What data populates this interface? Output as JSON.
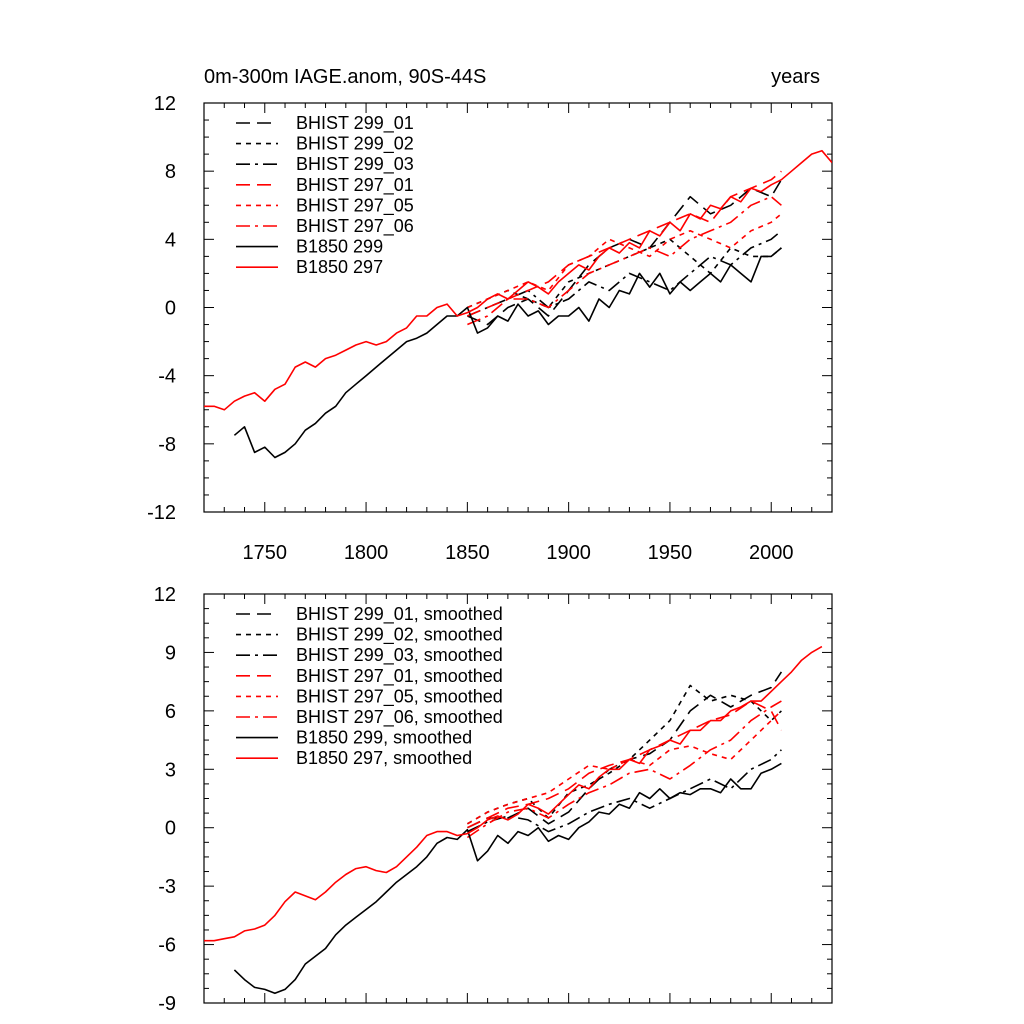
{
  "chart_data": [
    {
      "type": "line",
      "title": "0m-300m IAGE.anom, 90S-44S",
      "units": "years",
      "xlim": [
        1720,
        2030
      ],
      "ylim": [
        -12,
        12
      ],
      "xticks": [
        1750,
        1800,
        1850,
        1900,
        1950,
        2000
      ],
      "yticks": [
        -12,
        -8,
        -4,
        0,
        4,
        8,
        12
      ],
      "legend_position": "top-left",
      "series": [
        {
          "name": "BHIST 299_01",
          "color": "#000000",
          "dash": "longdash",
          "x": [
            1850,
            1860,
            1870,
            1880,
            1890,
            1900,
            1910,
            1920,
            1930,
            1940,
            1950,
            1960,
            1970,
            1980,
            1990,
            2000,
            2005
          ],
          "y": [
            -0.5,
            -1.0,
            0.0,
            0.5,
            -0.5,
            1.0,
            2.5,
            3.5,
            4.0,
            3.5,
            5.0,
            6.5,
            5.5,
            6.0,
            7.0,
            6.5,
            7.5
          ]
        },
        {
          "name": "BHIST 299_02",
          "color": "#000000",
          "dash": "shortdash",
          "x": [
            1850,
            1860,
            1870,
            1880,
            1890,
            1900,
            1910,
            1920,
            1930,
            1940,
            1950,
            1960,
            1970,
            1980,
            1990,
            2000,
            2005
          ],
          "y": [
            0.0,
            0.5,
            1.0,
            0.5,
            0.0,
            1.5,
            2.0,
            2.5,
            3.0,
            3.5,
            4.0,
            3.0,
            2.0,
            3.5,
            3.0,
            3.0,
            3.5
          ]
        },
        {
          "name": "BHIST 299_03",
          "color": "#000000",
          "dash": "dashdot",
          "x": [
            1850,
            1860,
            1870,
            1880,
            1890,
            1900,
            1910,
            1920,
            1930,
            1940,
            1950,
            1960,
            1970,
            1980,
            1990,
            2000,
            2005
          ],
          "y": [
            -0.5,
            0.0,
            0.5,
            1.0,
            0.0,
            0.5,
            1.5,
            1.0,
            2.0,
            1.5,
            1.0,
            2.0,
            3.0,
            2.5,
            3.5,
            4.0,
            4.5
          ]
        },
        {
          "name": "BHIST 297_01",
          "color": "#ff0000",
          "dash": "longdash",
          "x": [
            1850,
            1860,
            1870,
            1880,
            1890,
            1900,
            1910,
            1920,
            1930,
            1940,
            1950,
            1960,
            1970,
            1980,
            1990,
            2000,
            2005
          ],
          "y": [
            -0.5,
            0.0,
            0.5,
            1.0,
            1.5,
            2.5,
            3.0,
            3.5,
            4.0,
            4.5,
            5.0,
            5.5,
            5.0,
            6.5,
            7.0,
            7.5,
            8.0
          ]
        },
        {
          "name": "BHIST 297_05",
          "color": "#ff0000",
          "dash": "shortdash",
          "x": [
            1850,
            1860,
            1870,
            1880,
            1890,
            1900,
            1910,
            1920,
            1930,
            1940,
            1950,
            1960,
            1970,
            1980,
            1990,
            2000,
            2005
          ],
          "y": [
            0.0,
            0.5,
            1.0,
            1.5,
            1.0,
            2.5,
            3.0,
            4.0,
            3.5,
            3.0,
            4.0,
            4.5,
            4.0,
            3.5,
            4.5,
            5.0,
            5.5
          ]
        },
        {
          "name": "BHIST 297_06",
          "color": "#ff0000",
          "dash": "dashdot",
          "x": [
            1850,
            1860,
            1870,
            1880,
            1890,
            1900,
            1910,
            1920,
            1930,
            1940,
            1950,
            1960,
            1970,
            1980,
            1990,
            2000,
            2005
          ],
          "y": [
            -1.0,
            -0.5,
            0.5,
            0.5,
            0.0,
            1.0,
            2.0,
            2.5,
            3.0,
            3.5,
            3.0,
            4.0,
            4.5,
            5.0,
            6.0,
            6.5,
            6.0
          ]
        },
        {
          "name": "B1850 299",
          "color": "#000000",
          "dash": "solid",
          "x": [
            1735,
            1740,
            1745,
            1750,
            1755,
            1760,
            1765,
            1770,
            1775,
            1780,
            1785,
            1790,
            1795,
            1800,
            1805,
            1810,
            1815,
            1820,
            1825,
            1830,
            1835,
            1840,
            1845,
            1850,
            1855,
            1860,
            1865,
            1870,
            1875,
            1880,
            1885,
            1890,
            1895,
            1900,
            1905,
            1910,
            1915,
            1920,
            1925,
            1930,
            1935,
            1940,
            1945,
            1950,
            1955,
            1960,
            1965,
            1970,
            1975,
            1980,
            1985,
            1990,
            1995,
            2000,
            2005
          ],
          "y": [
            -7.5,
            -7.0,
            -8.5,
            -8.2,
            -8.8,
            -8.5,
            -8.0,
            -7.2,
            -6.8,
            -6.2,
            -5.8,
            -5.0,
            -4.5,
            -4.0,
            -3.5,
            -3.0,
            -2.5,
            -2.0,
            -1.8,
            -1.5,
            -1.0,
            -0.5,
            -0.5,
            0.0,
            -1.5,
            -1.2,
            -0.5,
            -0.8,
            0.2,
            -0.5,
            -0.2,
            -1.0,
            -0.5,
            -0.5,
            0.0,
            -0.8,
            0.5,
            0.0,
            1.0,
            0.8,
            2.0,
            1.2,
            2.0,
            0.8,
            1.5,
            1.0,
            1.5,
            2.0,
            1.5,
            2.5,
            2.0,
            1.5,
            3.0,
            3.0,
            3.5
          ]
        },
        {
          "name": "B1850 297",
          "color": "#ff0000",
          "dash": "solid",
          "x": [
            1720,
            1725,
            1730,
            1735,
            1740,
            1745,
            1750,
            1755,
            1760,
            1765,
            1770,
            1775,
            1780,
            1785,
            1790,
            1795,
            1800,
            1805,
            1810,
            1815,
            1820,
            1825,
            1830,
            1835,
            1840,
            1845,
            1850,
            1855,
            1860,
            1865,
            1870,
            1875,
            1880,
            1885,
            1890,
            1895,
            1900,
            1905,
            1910,
            1915,
            1920,
            1925,
            1930,
            1935,
            1940,
            1945,
            1950,
            1955,
            1960,
            1965,
            1970,
            1975,
            1980,
            1985,
            1990,
            1995,
            2000,
            2005,
            2010,
            2015,
            2020,
            2025,
            2030
          ],
          "y": [
            -5.8,
            -5.8,
            -6.0,
            -5.5,
            -5.2,
            -5.0,
            -5.5,
            -4.8,
            -4.5,
            -3.5,
            -3.2,
            -3.5,
            -3.0,
            -2.8,
            -2.5,
            -2.2,
            -2.0,
            -2.2,
            -2.0,
            -1.5,
            -1.2,
            -0.5,
            -0.5,
            0.0,
            0.2,
            -0.5,
            -0.3,
            0.0,
            0.5,
            0.8,
            0.5,
            1.0,
            1.5,
            1.2,
            0.8,
            1.5,
            2.0,
            2.5,
            2.2,
            3.0,
            3.5,
            3.2,
            3.8,
            3.5,
            4.5,
            4.2,
            5.0,
            4.5,
            5.5,
            5.2,
            6.0,
            5.8,
            6.5,
            6.2,
            7.0,
            6.8,
            7.2,
            7.5,
            8.0,
            8.5,
            9.0,
            9.2,
            8.5
          ]
        }
      ]
    },
    {
      "type": "line",
      "xlim": [
        1720,
        2030
      ],
      "ylim": [
        -9,
        12
      ],
      "xticks": [
        1750,
        1800,
        1850,
        1900,
        1950,
        2000
      ],
      "yticks": [
        -9,
        -6,
        -3,
        0,
        3,
        6,
        9,
        12
      ],
      "legend_position": "top-left",
      "series": [
        {
          "name": "BHIST 299_01, smoothed",
          "color": "#000000",
          "dash": "longdash",
          "x": [
            1850,
            1860,
            1870,
            1880,
            1890,
            1900,
            1910,
            1920,
            1930,
            1940,
            1950,
            1960,
            1970,
            1980,
            1990,
            2000,
            2005
          ],
          "y": [
            0.0,
            0.5,
            0.5,
            1.0,
            0.2,
            0.8,
            2.0,
            3.0,
            3.5,
            3.8,
            4.5,
            6.0,
            6.8,
            6.2,
            6.8,
            7.2,
            8.0
          ]
        },
        {
          "name": "BHIST 299_02, smoothed",
          "color": "#000000",
          "dash": "shortdash",
          "x": [
            1850,
            1860,
            1870,
            1880,
            1890,
            1900,
            1910,
            1920,
            1930,
            1940,
            1950,
            1960,
            1970,
            1980,
            1990,
            2000,
            2005
          ],
          "y": [
            0.2,
            0.8,
            1.2,
            1.5,
            0.5,
            1.8,
            2.2,
            2.8,
            3.5,
            4.5,
            5.5,
            7.3,
            6.5,
            6.8,
            6.5,
            5.5,
            6.0
          ]
        },
        {
          "name": "BHIST 299_03, smoothed",
          "color": "#000000",
          "dash": "dashdot",
          "x": [
            1850,
            1860,
            1870,
            1880,
            1890,
            1900,
            1910,
            1920,
            1930,
            1940,
            1950,
            1960,
            1970,
            1980,
            1990,
            2000,
            2005
          ],
          "y": [
            -0.2,
            0.3,
            0.6,
            0.4,
            -0.2,
            0.2,
            0.8,
            1.2,
            1.5,
            1.0,
            1.5,
            2.0,
            2.5,
            2.0,
            3.0,
            3.5,
            4.0
          ]
        },
        {
          "name": "BHIST 297_01, smoothed",
          "color": "#ff0000",
          "dash": "longdash",
          "x": [
            1850,
            1860,
            1870,
            1880,
            1890,
            1900,
            1910,
            1920,
            1930,
            1940,
            1950,
            1960,
            1970,
            1980,
            1990,
            2000,
            2005
          ],
          "y": [
            0.0,
            0.5,
            1.0,
            1.2,
            1.5,
            2.0,
            2.8,
            3.2,
            3.5,
            4.0,
            4.5,
            5.0,
            5.5,
            5.8,
            6.5,
            6.0,
            5.0
          ]
        },
        {
          "name": "BHIST 297_05, smoothed",
          "color": "#ff0000",
          "dash": "shortdash",
          "x": [
            1850,
            1860,
            1870,
            1880,
            1890,
            1900,
            1910,
            1920,
            1930,
            1940,
            1950,
            1960,
            1970,
            1980,
            1990,
            2000,
            2005
          ],
          "y": [
            0.2,
            0.8,
            1.2,
            1.5,
            1.8,
            2.5,
            3.2,
            3.0,
            3.5,
            3.2,
            4.0,
            4.2,
            3.8,
            3.5,
            4.5,
            5.5,
            6.0
          ]
        },
        {
          "name": "BHIST 297_06, smoothed",
          "color": "#ff0000",
          "dash": "dashdot",
          "x": [
            1850,
            1860,
            1870,
            1880,
            1890,
            1900,
            1910,
            1920,
            1930,
            1940,
            1950,
            1960,
            1970,
            1980,
            1990,
            2000,
            2005
          ],
          "y": [
            -0.5,
            0.2,
            0.8,
            1.0,
            0.5,
            1.2,
            1.8,
            2.2,
            2.8,
            3.0,
            2.5,
            3.2,
            4.0,
            4.5,
            5.5,
            6.2,
            6.5
          ]
        },
        {
          "name": "B1850 299, smoothed",
          "color": "#000000",
          "dash": "solid",
          "x": [
            1735,
            1740,
            1745,
            1750,
            1755,
            1760,
            1765,
            1770,
            1775,
            1780,
            1785,
            1790,
            1795,
            1800,
            1805,
            1810,
            1815,
            1820,
            1825,
            1830,
            1835,
            1840,
            1845,
            1850,
            1855,
            1860,
            1865,
            1870,
            1875,
            1880,
            1885,
            1890,
            1895,
            1900,
            1905,
            1910,
            1915,
            1920,
            1925,
            1930,
            1935,
            1940,
            1945,
            1950,
            1955,
            1960,
            1965,
            1970,
            1975,
            1980,
            1985,
            1990,
            1995,
            2000,
            2005
          ],
          "y": [
            -7.3,
            -7.8,
            -8.2,
            -8.3,
            -8.5,
            -8.3,
            -7.8,
            -7.0,
            -6.6,
            -6.2,
            -5.5,
            -5.0,
            -4.6,
            -4.2,
            -3.8,
            -3.3,
            -2.8,
            -2.4,
            -2.0,
            -1.5,
            -0.8,
            -0.5,
            -0.6,
            -0.1,
            -1.7,
            -1.2,
            -0.4,
            -0.8,
            -0.2,
            -0.4,
            0.0,
            -0.7,
            -0.4,
            -0.6,
            0.0,
            0.3,
            0.8,
            0.7,
            1.2,
            1.0,
            1.8,
            1.5,
            2.0,
            1.5,
            1.8,
            1.7,
            2.0,
            2.0,
            1.8,
            2.5,
            2.0,
            2.0,
            2.8,
            3.0,
            3.3
          ]
        },
        {
          "name": "B1850 297, smoothed",
          "color": "#ff0000",
          "dash": "solid",
          "x": [
            1720,
            1725,
            1730,
            1735,
            1740,
            1745,
            1750,
            1755,
            1760,
            1765,
            1770,
            1775,
            1780,
            1785,
            1790,
            1795,
            1800,
            1805,
            1810,
            1815,
            1820,
            1825,
            1830,
            1835,
            1840,
            1845,
            1850,
            1855,
            1860,
            1865,
            1870,
            1875,
            1880,
            1885,
            1890,
            1895,
            1900,
            1905,
            1910,
            1915,
            1920,
            1925,
            1930,
            1935,
            1940,
            1945,
            1950,
            1955,
            1960,
            1965,
            1970,
            1975,
            1980,
            1985,
            1990,
            1995,
            2000,
            2005,
            2010,
            2015,
            2020,
            2025
          ],
          "y": [
            -5.8,
            -5.8,
            -5.7,
            -5.6,
            -5.3,
            -5.2,
            -5.0,
            -4.5,
            -3.8,
            -3.3,
            -3.5,
            -3.7,
            -3.3,
            -2.8,
            -2.4,
            -2.1,
            -2.0,
            -2.2,
            -2.3,
            -2.0,
            -1.5,
            -1.0,
            -0.4,
            -0.2,
            -0.2,
            -0.4,
            -0.3,
            0.0,
            0.4,
            0.6,
            0.4,
            0.7,
            1.2,
            1.0,
            0.7,
            1.2,
            1.7,
            2.2,
            2.0,
            2.6,
            3.0,
            3.0,
            3.5,
            3.3,
            4.0,
            4.2,
            4.5,
            4.3,
            5.0,
            5.0,
            5.5,
            5.5,
            6.0,
            6.2,
            6.5,
            6.5,
            7.0,
            7.5,
            8.0,
            8.6,
            9.0,
            9.3
          ]
        }
      ]
    }
  ]
}
